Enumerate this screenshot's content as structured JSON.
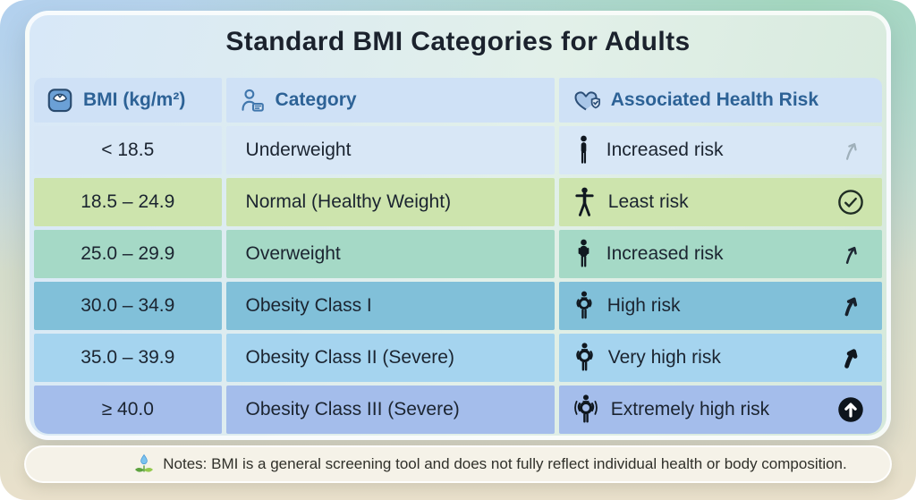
{
  "title": "Standard BMI Categories for Adults",
  "colors": {
    "header_bg": "#cfe1f6",
    "header_text": "#2d6296",
    "row_text": "#1b2430",
    "note_bg": "#f5f2e8",
    "note_text": "#30302a",
    "arrow_gray": "#9fb0ba",
    "arrow_dark": "#1d2733"
  },
  "table": {
    "headers": [
      {
        "label": "BMI (kg/m²)",
        "icon": "scale-icon"
      },
      {
        "label": "Category",
        "icon": "person-card-icon"
      },
      {
        "label": "Associated Health Risk",
        "icon": "heart-shield-icon"
      }
    ],
    "rows": [
      {
        "bmi": "< 18.5",
        "category": "Underweight",
        "risk": "Increased risk",
        "figure_icon": "person-thin-icon",
        "risk_icon": "trend-up-light-icon",
        "bg": "#d8e7f6"
      },
      {
        "bmi": "18.5 – 24.9",
        "category": "Normal (Healthy Weight)",
        "risk": "Least risk",
        "figure_icon": "person-arms-out-icon",
        "risk_icon": "check-circle-icon",
        "bg": "#cde4ad"
      },
      {
        "bmi": "25.0 – 29.9",
        "category": "Overweight",
        "risk": "Increased risk",
        "figure_icon": "person-mid-icon",
        "risk_icon": "trend-up-icon",
        "bg": "#a5d9c6"
      },
      {
        "bmi": "30.0 – 34.9",
        "category": "Obesity Class I",
        "risk": "High risk",
        "figure_icon": "person-belly-icon",
        "risk_icon": "trend-up-bold-icon",
        "bg": "#81c0d9"
      },
      {
        "bmi": "35.0 – 39.9",
        "category": "Obesity Class II (Severe)",
        "risk": "Very high risk",
        "figure_icon": "person-belly-large-icon",
        "risk_icon": "trend-up-heavy-icon",
        "bg": "#a5d4ef"
      },
      {
        "bmi": "≥ 40.0",
        "category": "Obesity Class III (Severe)",
        "risk": "Extremely high risk",
        "figure_icon": "person-belly-rings-icon",
        "risk_icon": "arrow-circle-up-icon",
        "bg": "#a4bdeb"
      }
    ]
  },
  "note": {
    "icon": "sprout-drop-icon",
    "text": "Notes: BMI is a general screening tool and does not fully reflect individual health or body composition."
  },
  "chart_data": {
    "type": "table",
    "title": "Standard BMI Categories for Adults",
    "columns": [
      "BMI (kg/m²)",
      "Category",
      "Associated Health Risk"
    ],
    "rows": [
      [
        "< 18.5",
        "Underweight",
        "Increased risk"
      ],
      [
        "18.5 – 24.9",
        "Normal (Healthy Weight)",
        "Least risk"
      ],
      [
        "25.0 – 29.9",
        "Overweight",
        "Increased risk"
      ],
      [
        "30.0 – 34.9",
        "Obesity Class I",
        "High risk"
      ],
      [
        "35.0 – 39.9",
        "Obesity Class II (Severe)",
        "Very high risk"
      ],
      [
        "≥ 40.0",
        "Obesity Class III (Severe)",
        "Extremely high risk"
      ]
    ],
    "note": "Notes: BMI is a general screening tool and does not fully reflect individual health or body composition.",
    "row_colors": [
      "#d8e7f6",
      "#cde4ad",
      "#a5d9c6",
      "#81c0d9",
      "#a5d4ef",
      "#a4bdeb"
    ]
  }
}
